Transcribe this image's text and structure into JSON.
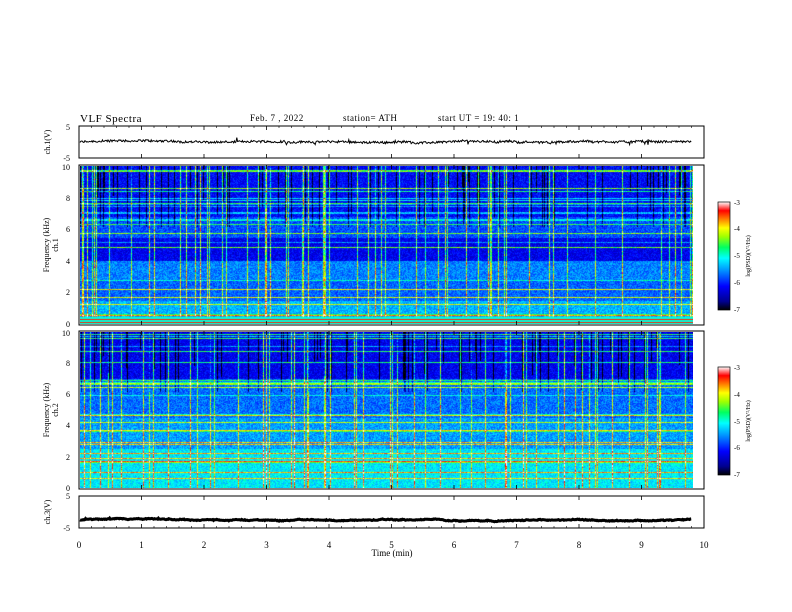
{
  "header": {
    "title": "VLF  Spectra",
    "date": "Feb. 7  , 2022",
    "station": "station= ATH",
    "start": "start  UT  =    19: 40: 1"
  },
  "colors": {
    "trace": "#000000",
    "frame": "#000000",
    "colormap": [
      "#000000",
      "#000080",
      "#0000ff",
      "#00a0ff",
      "#00ffff",
      "#00ff80",
      "#80ff00",
      "#ffff00",
      "#ff8000",
      "#ff0000",
      "#ffffff"
    ]
  },
  "chart_data": [
    {
      "type": "line",
      "name": "ch1-waveform",
      "ylabel": "ch.1(V)",
      "ylim": [
        -5,
        5
      ],
      "yticks": [
        "5",
        "-5"
      ],
      "xlim": [
        0,
        10
      ],
      "approx_level": 0,
      "approx_amplitude": 0.7
    },
    {
      "type": "heatmap",
      "name": "ch1-spectrogram",
      "ylabel": "ch.1\nFrequency  (kHz)",
      "ylim": [
        0,
        10
      ],
      "yticks": [
        "0",
        "2",
        "4",
        "6",
        "8",
        "10"
      ],
      "xlim": [
        0,
        10
      ],
      "data_end_min": 9.8,
      "colorbar": {
        "label": "log(PSD)(V²/Hz)",
        "range": [
          -7,
          -3
        ],
        "ticks": [
          "-3",
          "-4",
          "-5",
          "-6",
          "-7"
        ]
      }
    },
    {
      "type": "heatmap",
      "name": "ch2-spectrogram",
      "ylabel": "ch.2\nFrequency  (kHz)",
      "ylim": [
        0,
        10
      ],
      "yticks": [
        "0",
        "2",
        "4",
        "6",
        "8",
        "10"
      ],
      "xlim": [
        0,
        10
      ],
      "data_end_min": 9.8,
      "colorbar": {
        "label": "log(PSD)(V²/Hz)",
        "range": [
          -7,
          -3
        ],
        "ticks": [
          "-3",
          "-4",
          "-5",
          "-6",
          "-7"
        ]
      }
    },
    {
      "type": "line",
      "name": "ch3-waveform",
      "ylabel": "ch.3(V)",
      "ylim": [
        -5,
        5
      ],
      "yticks": [
        "5",
        "-5"
      ],
      "xlim": [
        0,
        10
      ],
      "approx_level": -2.5,
      "approx_amplitude": 0.2
    }
  ],
  "xaxis": {
    "label": "Time  (min)",
    "ticks": [
      "0",
      "1",
      "2",
      "3",
      "4",
      "5",
      "6",
      "7",
      "8",
      "9",
      "10"
    ]
  }
}
